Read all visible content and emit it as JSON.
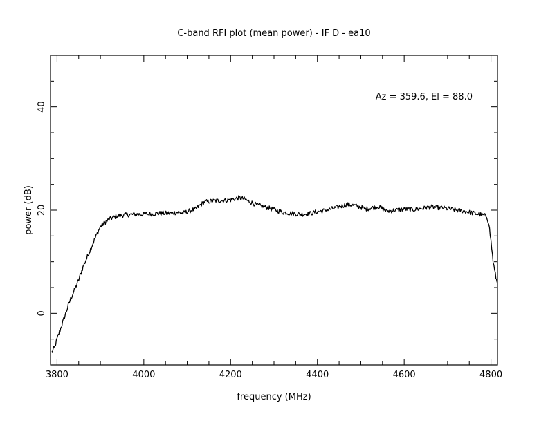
{
  "chart_data": {
    "type": "line",
    "title": "C-band RFI plot (mean power) - IF D - ea10",
    "xlabel": "frequency (MHz)",
    "ylabel": "power (dB)",
    "annotation": "Az = 359.6, El = 88.0",
    "xlim": [
      3785,
      4815
    ],
    "ylim": [
      -10,
      50
    ],
    "x_ticks": [
      3800,
      4000,
      4200,
      4400,
      4600,
      4800
    ],
    "y_ticks": [
      0,
      20,
      40
    ],
    "grid": false,
    "line_color": "#000000",
    "series": [
      {
        "x": [
          3788,
          3795,
          3800,
          3810,
          3820,
          3830,
          3840,
          3850,
          3860,
          3870,
          3880,
          3890,
          3900,
          3910,
          3920,
          3930,
          3940,
          3950,
          3960,
          3980,
          4000,
          4020,
          4040,
          4060,
          4080,
          4090,
          4100,
          4110,
          4120,
          4130,
          4140,
          4160,
          4180,
          4200,
          4220,
          4230,
          4240,
          4260,
          4280,
          4300,
          4320,
          4340,
          4360,
          4380,
          4400,
          4420,
          4440,
          4460,
          4470,
          4480,
          4500,
          4510,
          4520,
          4530,
          4540,
          4550,
          4560,
          4580,
          4600,
          4620,
          4640,
          4660,
          4680,
          4700,
          4720,
          4740,
          4760,
          4780,
          4790,
          4795,
          4800,
          4805,
          4810,
          4814
        ],
        "y": [
          -7.5,
          -6.5,
          -5.0,
          -2.5,
          0.0,
          2.5,
          4.5,
          6.5,
          9.0,
          11.0,
          13.0,
          15.0,
          16.8,
          17.6,
          18.2,
          18.6,
          18.9,
          19.0,
          19.1,
          19.2,
          19.2,
          19.3,
          19.4,
          19.4,
          19.6,
          19.4,
          19.7,
          20.0,
          20.2,
          21.0,
          21.6,
          21.8,
          21.9,
          22.0,
          22.4,
          22.2,
          21.8,
          21.0,
          20.6,
          20.1,
          19.6,
          19.4,
          19.2,
          19.3,
          19.7,
          20.0,
          20.4,
          20.9,
          21.1,
          21.0,
          20.6,
          20.2,
          20.4,
          20.5,
          20.7,
          20.3,
          19.8,
          20.0,
          20.2,
          20.1,
          20.3,
          20.6,
          20.5,
          20.3,
          20.0,
          19.8,
          19.4,
          19.1,
          18.8,
          17.5,
          14.0,
          10.0,
          7.5,
          6.0
        ]
      }
    ]
  }
}
